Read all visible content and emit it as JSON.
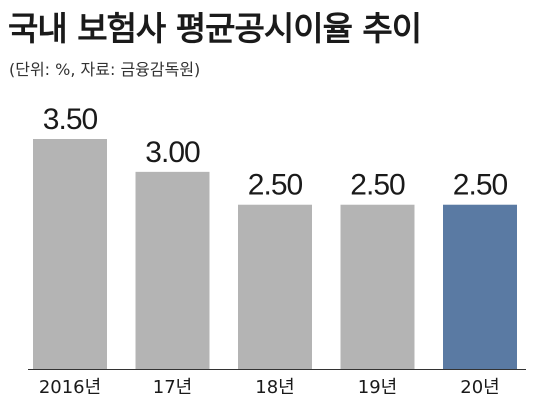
{
  "chart_data": {
    "type": "bar",
    "title": "국내 보험사 평균공시이율 추이",
    "subtitle": "(단위: %, 자료: 금융감독원)",
    "categories": [
      "2016년",
      "17년",
      "18년",
      "19년",
      "20년"
    ],
    "values": [
      3.5,
      3.0,
      2.5,
      2.5,
      2.5
    ],
    "value_labels": [
      "3.50",
      "3.00",
      "2.50",
      "2.50",
      "2.50"
    ],
    "xlabel": "",
    "ylabel": "",
    "ylim": [
      0,
      3.5
    ],
    "grid": false,
    "legend": "none",
    "colors": {
      "default_bar": "#b4b4b4",
      "highlight_bar": "#5a7aa3",
      "baseline": "#333333"
    },
    "highlight_index": 4
  }
}
